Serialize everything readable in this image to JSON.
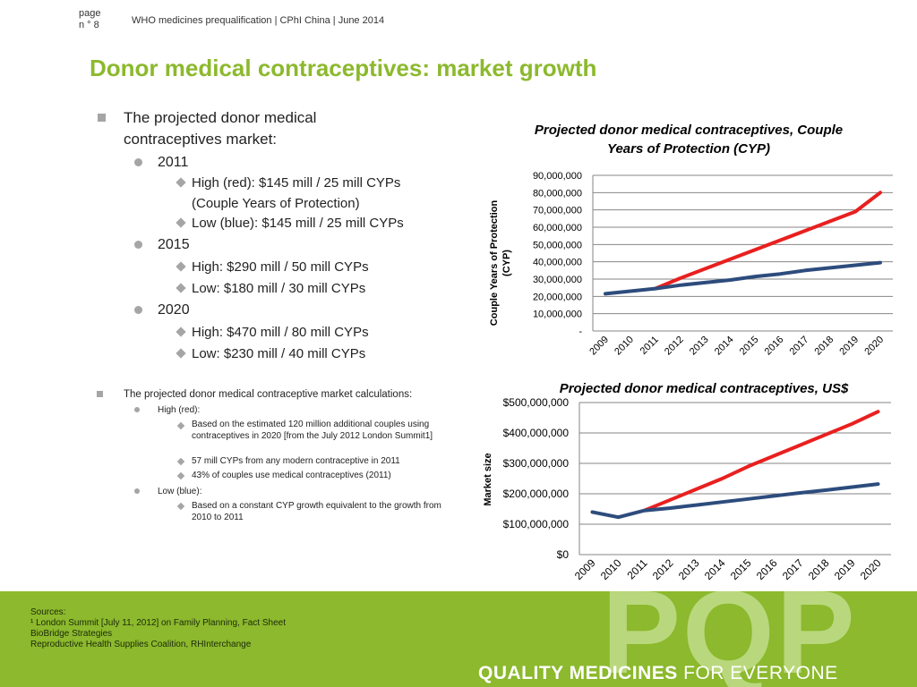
{
  "header": {
    "page_label": "page",
    "page_num": "n ° 8",
    "title": "WHO medicines prequalification | CPhI China | June 2014"
  },
  "slide_title": "Donor medical contraceptives: market growth",
  "left_text": {
    "heading": "The projected donor medical contraceptives market:",
    "y2011": "2011",
    "y2011_high": "High (red): $145 mill / 25 mill CYPs (Couple Years of Protection)",
    "y2011_low": "Low (blue): $145 mill / 25 mill CYPs",
    "y2015": "2015",
    "y2015_high": "High: $290 mill / 50 mill CYPs",
    "y2015_low": "Low: $180 mill / 30 mill CYPs",
    "y2020": "2020",
    "y2020_high": "High: $470 mill / 80 mill CYPs",
    "y2020_low": "Low: $230 mill / 40 mill CYPs",
    "calc_heading": "The projected donor medical contraceptive market calculations:",
    "calc_high": "High (red):",
    "calc_high_1": "Based on the estimated 120 million additional couples using contraceptives in 2020 [from the July 2012 London Summit1]",
    "calc_high_2": "57 mill CYPs from any modern contraceptive in 2011",
    "calc_high_3": "43% of couples use medical contraceptives (2011)",
    "calc_low": "Low (blue):",
    "calc_low_1": "Based on a constant CYP growth equivalent to the growth from 2010 to 2011"
  },
  "chart_data": [
    {
      "type": "line",
      "title": "Projected donor medical contraceptives, Couple Years of Protection (CYP)",
      "title_line1": "Projected donor medical contraceptives, Couple",
      "title_line2": "Years of Protection (CYP)",
      "ylabel": "Couple Years of Protection (CYP)",
      "ylabel_line1": "Couple Years of Protection",
      "ylabel_line2": "(CYP)",
      "xlabel": "",
      "ylim": [
        0,
        90000000
      ],
      "yticks": [
        0,
        10000000,
        20000000,
        30000000,
        40000000,
        50000000,
        60000000,
        70000000,
        80000000,
        90000000
      ],
      "ytick_labels": [
        "-",
        "10,000,000",
        "20,000,000",
        "30,000,000",
        "40,000,000",
        "50,000,000",
        "60,000,000",
        "70,000,000",
        "80,000,000",
        "90,000,000"
      ],
      "categories": [
        "2009",
        "2010",
        "2011",
        "2012",
        "2013",
        "2014",
        "2015",
        "2016",
        "2017",
        "2018",
        "2019",
        "2020"
      ],
      "grid": "horizontal",
      "series": [
        {
          "color": "#e8201f",
          "values": [
            null,
            null,
            24500000,
            30500000,
            36000000,
            41500000,
            47000000,
            52500000,
            58000000,
            63500000,
            69000000,
            80000000
          ]
        },
        {
          "color": "#2d4c7d",
          "values": [
            21500000,
            23000000,
            24500000,
            26500000,
            28000000,
            29500000,
            31500000,
            33000000,
            35000000,
            36500000,
            38000000,
            39500000
          ]
        }
      ]
    },
    {
      "type": "line",
      "title": "Projected donor medical contraceptives, US$",
      "ylabel": "Market size",
      "xlabel": "",
      "ylim": [
        0,
        500000000
      ],
      "yticks": [
        0,
        100000000,
        200000000,
        300000000,
        400000000,
        500000000
      ],
      "ytick_labels": [
        "$0",
        "$100,000,000",
        "$200,000,000",
        "$300,000,000",
        "$400,000,000",
        "$500,000,000"
      ],
      "categories": [
        "2009",
        "2010",
        "2011",
        "2012",
        "2013",
        "2014",
        "2015",
        "2016",
        "2017",
        "2018",
        "2019",
        "2020"
      ],
      "grid": "horizontal",
      "series": [
        {
          "color": "#e8201f",
          "values": [
            null,
            null,
            145000000,
            180000000,
            215000000,
            250000000,
            290000000,
            325000000,
            360000000,
            395000000,
            430000000,
            470000000
          ]
        },
        {
          "color": "#2d4c7d",
          "values": [
            140000000,
            123000000,
            145000000,
            153000000,
            163000000,
            173000000,
            183000000,
            193000000,
            203000000,
            212000000,
            222000000,
            232000000
          ]
        }
      ]
    }
  ],
  "footer": {
    "sources_label": "Sources:",
    "source_1": "¹ London Summit [July 11, 2012] on Family Planning, Fact Sheet",
    "source_2": "BioBridge Strategies",
    "source_3": "Reproductive Health Supplies Coalition, RHInterchange",
    "logo_text": "PQP",
    "tagline_bold": "QUALITY MEDICINES",
    "tagline_rest": " FOR EVERYONE",
    "accent_color": "#8cb92d"
  }
}
